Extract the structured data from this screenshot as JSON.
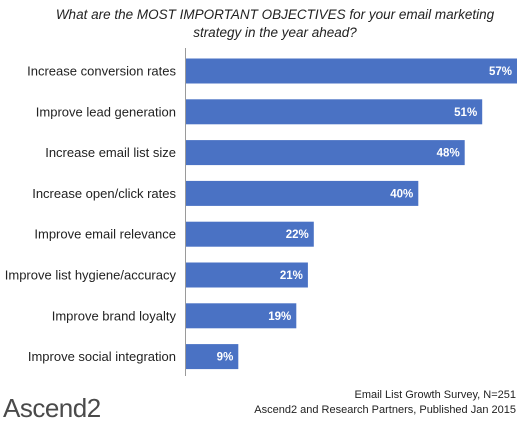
{
  "chart_data": {
    "type": "bar",
    "orientation": "horizontal",
    "title_lines": [
      "What are the MOST IMPORTANT OBJECTIVES for your email marketing",
      "strategy in the year ahead?"
    ],
    "categories": [
      "Increase conversion rates",
      "Improve lead generation",
      "Increase email list size",
      "Increase open/click rates",
      "Improve email relevance",
      "Improve list hygiene/accuracy",
      "Improve brand loyalty",
      "Improve social integration"
    ],
    "values": [
      57,
      51,
      48,
      40,
      22,
      21,
      19,
      9
    ],
    "value_labels": [
      "57%",
      "51%",
      "48%",
      "40%",
      "22%",
      "21%",
      "19%",
      "9%"
    ],
    "xlim": [
      0,
      57
    ],
    "grid": false,
    "bar_color": "#4a72c4"
  },
  "source": {
    "line1": "Email List Growth Survey, N=251",
    "line2": "Ascend2 and Research Partners, Published Jan 2015"
  },
  "logo": {
    "text": "Ascend2"
  }
}
